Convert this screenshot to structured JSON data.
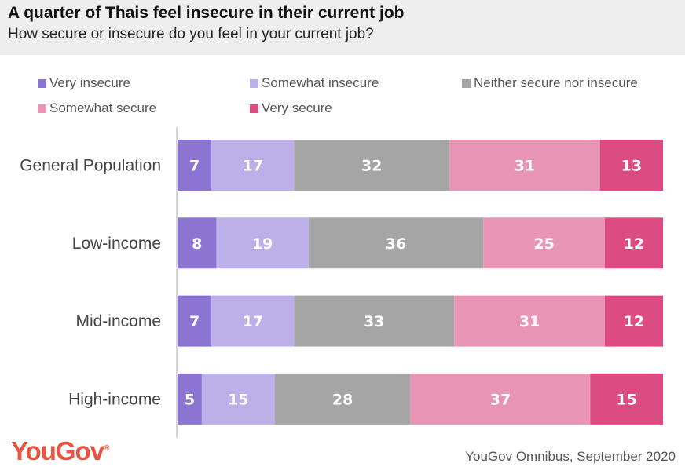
{
  "header": {
    "title": "A quarter of Thais feel insecure in their current job",
    "subtitle": "How secure or insecure do you feel in your current job?"
  },
  "footer": {
    "brand": "YouGov",
    "brand_mark": "®",
    "source": "YouGov Omnibus, September 2020"
  },
  "chart_data": {
    "type": "bar",
    "orientation": "horizontal",
    "stacked": true,
    "categories": [
      "General Population",
      "Low-income",
      "Mid-income",
      "High-income"
    ],
    "series": [
      {
        "name": "Very insecure",
        "color": "#8c74d2",
        "values": [
          7,
          8,
          7,
          5
        ]
      },
      {
        "name": "Somewhat insecure",
        "color": "#bdb0e8",
        "values": [
          17,
          19,
          17,
          15
        ]
      },
      {
        "name": "Neither secure nor insecure",
        "color": "#a5a5a5",
        "values": [
          32,
          36,
          33,
          28
        ]
      },
      {
        "name": "Somewhat secure",
        "color": "#e895b5",
        "values": [
          31,
          25,
          31,
          37
        ]
      },
      {
        "name": "Very secure",
        "color": "#dd4b83",
        "values": [
          13,
          12,
          12,
          15
        ]
      }
    ],
    "legend_position": "top",
    "grid": false,
    "data_labels": true
  }
}
